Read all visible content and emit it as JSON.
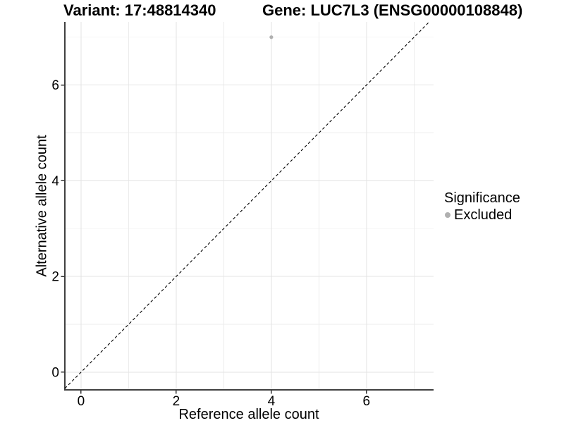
{
  "header": {
    "variant_title": "Variant: 17:48814340",
    "gene_title": "Gene: LUC7L3 (ENSG00000108848)"
  },
  "chart_data": {
    "type": "scatter",
    "xlabel": "Reference allele count",
    "ylabel": "Alternative allele count",
    "xlim": [
      -0.34,
      7.41
    ],
    "ylim": [
      -0.37,
      7.32
    ],
    "x_major_ticks": [
      0,
      2,
      4,
      6
    ],
    "x_minor_ticks": [
      1,
      3,
      5,
      7
    ],
    "y_major_ticks": [
      0,
      2,
      4,
      6
    ],
    "y_minor_ticks": [
      1,
      3,
      5,
      7
    ],
    "grid": "major+minor",
    "reference_line": {
      "type": "identity",
      "slope": 1,
      "intercept": 0,
      "style": "dashed",
      "color": "#000000"
    },
    "series": [
      {
        "name": "Excluded",
        "color": "#b0b0b0",
        "points": [
          {
            "x": 4,
            "y": 7
          }
        ]
      }
    ],
    "legend": {
      "title": "Significance",
      "position": "right",
      "items": [
        {
          "label": "Excluded",
          "color": "#b0b0b0"
        }
      ]
    }
  },
  "colors": {
    "background": "#ffffff",
    "grid_major": "#e3e3e3",
    "grid_minor": "#ececec",
    "axis_line": "#404040",
    "tick_mark": "#333333",
    "text": "#000000",
    "point": "#b0b0b0"
  }
}
